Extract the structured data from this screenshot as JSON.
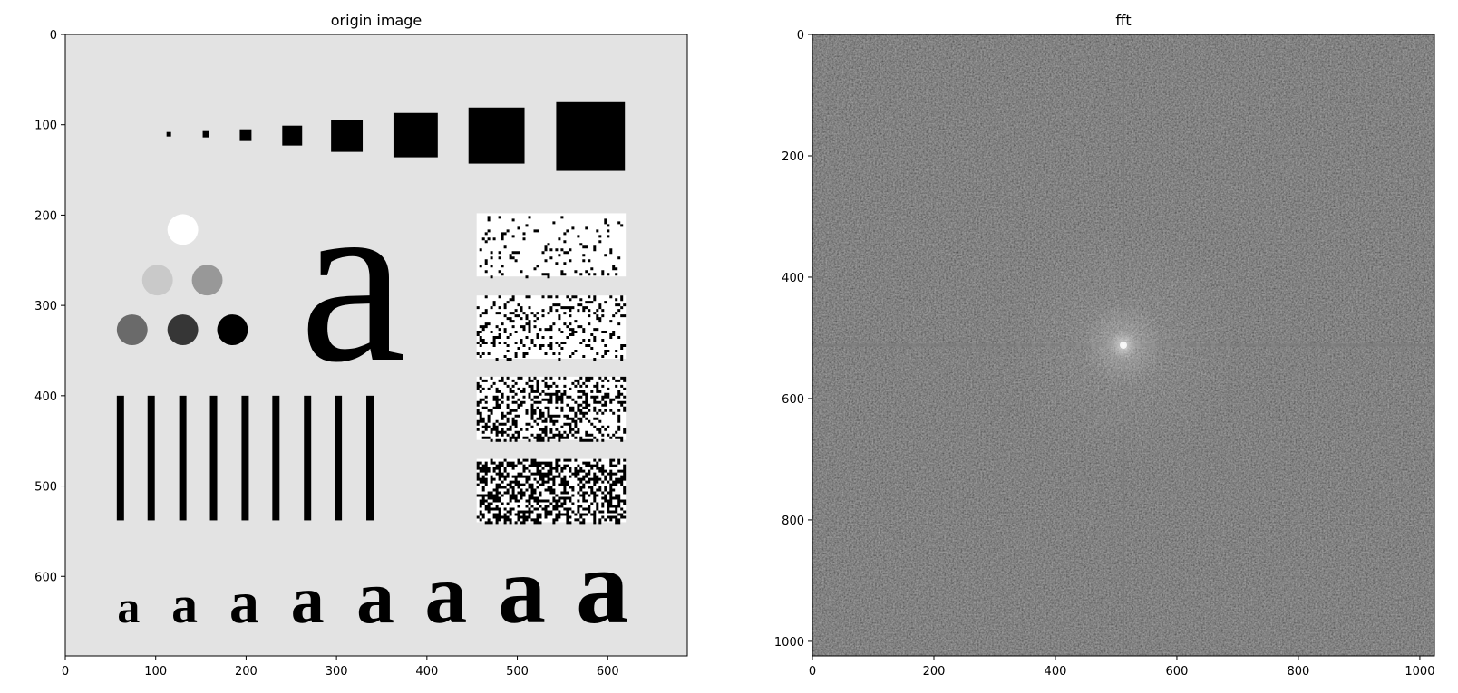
{
  "chart_data": [
    {
      "type": "image",
      "title": "origin image",
      "xlim": [
        0,
        688
      ],
      "ylim": [
        688,
        0
      ],
      "x_ticks": [
        0,
        100,
        200,
        300,
        400,
        500,
        600
      ],
      "y_ticks": [
        0,
        100,
        200,
        300,
        400,
        500,
        600
      ],
      "x_tick_labels": [
        "0",
        "100",
        "200",
        "300",
        "400",
        "500",
        "600"
      ],
      "y_tick_labels": [
        "0",
        "100",
        "200",
        "300",
        "400",
        "500",
        "600"
      ],
      "background_gray": "#e3e3e3",
      "glyph": "a",
      "grid": false,
      "squares": [
        {
          "x": 112,
          "y": 108,
          "w": 5,
          "h": 5
        },
        {
          "x": 152,
          "y": 107,
          "w": 7,
          "h": 7
        },
        {
          "x": 193,
          "y": 105,
          "w": 13,
          "h": 13
        },
        {
          "x": 240,
          "y": 101,
          "w": 22,
          "h": 22
        },
        {
          "x": 294,
          "y": 95,
          "w": 35,
          "h": 35
        },
        {
          "x": 363,
          "y": 87,
          "w": 49,
          "h": 49
        },
        {
          "x": 446,
          "y": 81,
          "w": 62,
          "h": 62
        },
        {
          "x": 543,
          "y": 75,
          "w": 76,
          "h": 76
        }
      ],
      "circles": [
        {
          "cx": 130,
          "cy": 216,
          "r": 17,
          "color": "#ffffff"
        },
        {
          "cx": 102,
          "cy": 272,
          "r": 17,
          "color": "#c9c9c9"
        },
        {
          "cx": 157,
          "cy": 272,
          "r": 17,
          "color": "#989898"
        },
        {
          "cx": 74,
          "cy": 327,
          "r": 17,
          "color": "#6a6a6a"
        },
        {
          "cx": 130,
          "cy": 327,
          "r": 17,
          "color": "#363636"
        },
        {
          "cx": 185,
          "cy": 327,
          "r": 17,
          "color": "#000000"
        }
      ],
      "bars": [
        {
          "x": 57,
          "w": 8
        },
        {
          "x": 91,
          "w": 8
        },
        {
          "x": 126,
          "w": 8
        },
        {
          "x": 160,
          "w": 8
        },
        {
          "x": 195,
          "w": 8
        },
        {
          "x": 229,
          "w": 8
        },
        {
          "x": 264,
          "w": 8
        },
        {
          "x": 298,
          "w": 8
        },
        {
          "x": 333,
          "w": 8
        }
      ],
      "bars_y": [
        400,
        538
      ],
      "big_glyph": {
        "x": 318,
        "y": 360,
        "size": 265
      },
      "small_glyphs": [
        {
          "x": 70,
          "size": 50
        },
        {
          "x": 132,
          "size": 58
        },
        {
          "x": 198,
          "size": 66
        },
        {
          "x": 268,
          "size": 74
        },
        {
          "x": 343,
          "size": 84
        },
        {
          "x": 421,
          "size": 94
        },
        {
          "x": 505,
          "size": 106
        },
        {
          "x": 594,
          "size": 118
        }
      ],
      "small_glyph_baseline": 651,
      "noise_blocks": [
        {
          "x": 455,
          "y": 198,
          "w": 165,
          "h": 70,
          "density": 0.08
        },
        {
          "x": 455,
          "y": 289,
          "w": 165,
          "h": 70,
          "density": 0.2
        },
        {
          "x": 455,
          "y": 379,
          "w": 165,
          "h": 70,
          "density": 0.35
        },
        {
          "x": 455,
          "y": 470,
          "w": 165,
          "h": 70,
          "density": 0.5
        }
      ]
    },
    {
      "type": "heatmap",
      "title": "fft",
      "xlim": [
        0,
        1024
      ],
      "ylim": [
        1024,
        0
      ],
      "x_ticks": [
        0,
        200,
        400,
        600,
        800,
        1000
      ],
      "y_ticks": [
        0,
        200,
        400,
        600,
        800,
        1000
      ],
      "x_tick_labels": [
        "0",
        "200",
        "400",
        "600",
        "800",
        "1000"
      ],
      "y_tick_labels": [
        "0",
        "200",
        "400",
        "600",
        "800",
        "1000"
      ],
      "center": [
        512,
        512
      ],
      "colormap": "gray",
      "base_gray": "#3f3f3f",
      "grid": false
    }
  ]
}
